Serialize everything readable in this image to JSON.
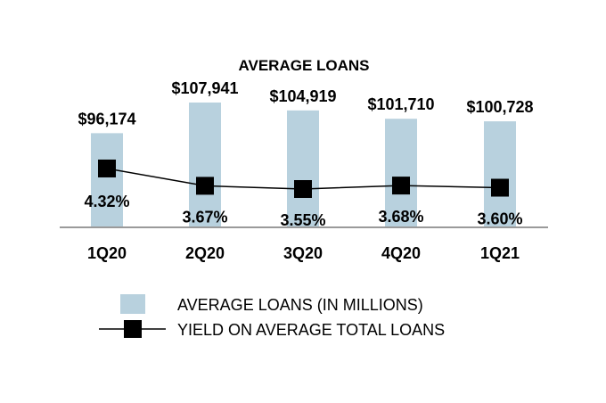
{
  "chart_data": {
    "type": "bar",
    "title": "AVERAGE LOANS",
    "categories": [
      "1Q20",
      "2Q20",
      "3Q20",
      "4Q20",
      "1Q21"
    ],
    "series": [
      {
        "name": "AVERAGE LOANS (IN MILLIONS)",
        "type": "bar",
        "values": [
          96174,
          107941,
          104919,
          101710,
          100728
        ],
        "labels": [
          "$96,174",
          "$107,941",
          "$104,919",
          "$101,710",
          "$100,728"
        ],
        "color": "#b8d1de"
      },
      {
        "name": "YIELD ON AVERAGE TOTAL LOANS",
        "type": "line",
        "values": [
          4.32,
          3.67,
          3.55,
          3.68,
          3.6
        ],
        "labels": [
          "4.32%",
          "3.67%",
          "3.55%",
          "3.68%",
          "3.60%"
        ],
        "color": "#000000"
      }
    ],
    "legend": "bottom",
    "grid": false
  }
}
